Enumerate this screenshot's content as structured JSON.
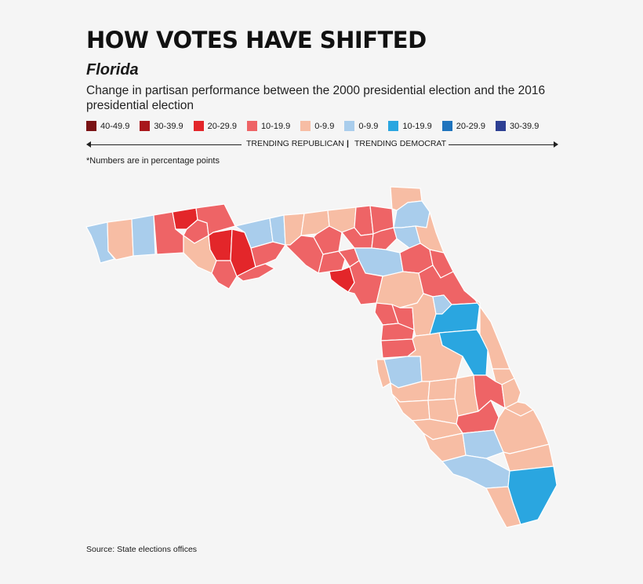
{
  "title": "HOW VOTES HAVE SHIFTED",
  "subtitle": "Florida",
  "description": "Change in partisan performance between the 2000 presidential election and the 2016 presidential election",
  "legend": [
    {
      "label": "40-49.9",
      "color": "#7a1214"
    },
    {
      "label": "30-39.9",
      "color": "#a8171c"
    },
    {
      "label": "20-29.9",
      "color": "#e3262a"
    },
    {
      "label": "10-19.9",
      "color": "#ee6466"
    },
    {
      "label": "0-9.9",
      "color": "#f7bda4"
    },
    {
      "label": "0-9.9",
      "color": "#a9cdec"
    },
    {
      "label": "10-19.9",
      "color": "#2aa6e0"
    },
    {
      "label": "20-29.9",
      "color": "#1f74bd"
    },
    {
      "label": "30-39.9",
      "color": "#2d3f93"
    }
  ],
  "trend": {
    "republican": "TRENDING REPUBLICAN",
    "separator": "|",
    "democrat": "TRENDING DEMOCRAT"
  },
  "note": "*Numbers are in percentage points",
  "source": "Source: State elections offices"
}
